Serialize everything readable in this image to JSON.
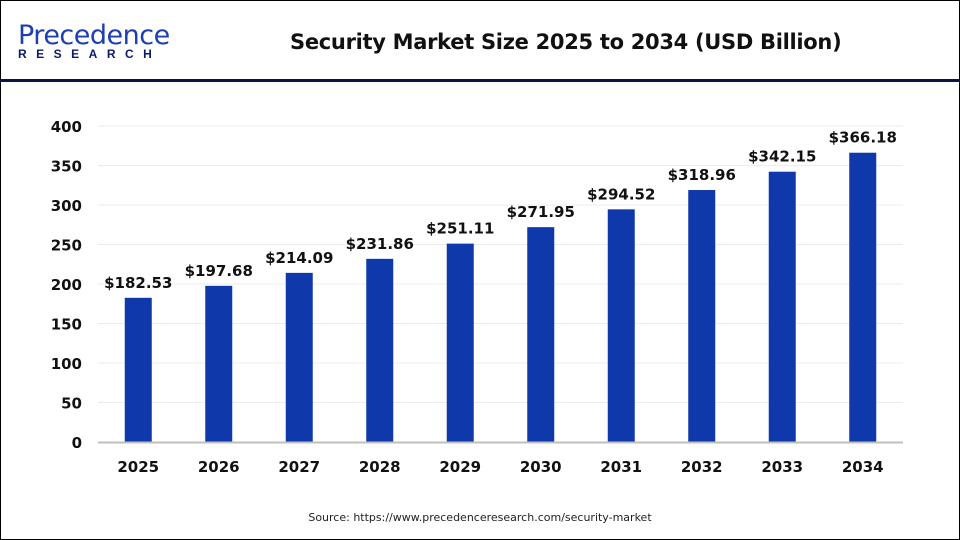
{
  "logo": {
    "line1": "Precedence",
    "line2": "RESEARCH"
  },
  "source": "Source:  https://www.precedenceresearch.com/security-market",
  "colors": {
    "bar": "#0f38ab",
    "header_line": "#0d1445"
  },
  "chart_data": {
    "type": "bar",
    "title": "Security Market Size 2025 to 2034 (USD Billion)",
    "categories": [
      "2025",
      "2026",
      "2027",
      "2028",
      "2029",
      "2030",
      "2031",
      "2032",
      "2033",
      "2034"
    ],
    "values": [
      182.53,
      197.68,
      214.09,
      231.86,
      251.11,
      271.95,
      294.52,
      318.96,
      342.15,
      366.18
    ],
    "data_labels": [
      "$182.53",
      "$197.68",
      "$214.09",
      "$231.86",
      "$251.11",
      "$271.95",
      "$294.52",
      "$318.96",
      "$342.15",
      "$366.18"
    ],
    "yticks": [
      "0",
      "50",
      "100",
      "150",
      "200",
      "250",
      "300",
      "350",
      "400"
    ],
    "ylim": [
      0,
      400
    ],
    "xlabel": "",
    "ylabel": "",
    "grid": true
  }
}
